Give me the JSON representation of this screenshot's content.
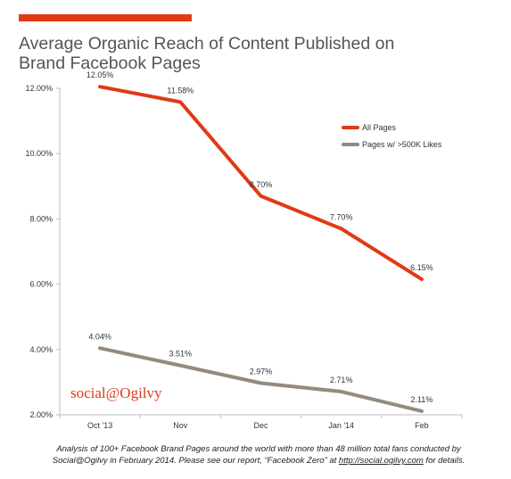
{
  "header": {
    "title_line1": "Average Organic Reach of Content Published on",
    "title_line2": "Brand Facebook Pages",
    "accent_color": "#e03a14"
  },
  "brand": {
    "text": "social@Ogilvy",
    "color": "#e03a14"
  },
  "footnote": {
    "line1": "Analysis of 100+ Facebook Brand Pages around the world with more than 48 million total fans conducted by",
    "line2_prefix": "Social@Ogilvy in February 2014. Please see our report, “Facebook Zero” at ",
    "link": "http://social.ogilvy.com",
    "line2_suffix": " for details."
  },
  "chart_data": {
    "type": "line",
    "categories": [
      "Oct '13",
      "Nov",
      "Dec",
      "Jan '14",
      "Feb"
    ],
    "ylim": [
      2,
      12
    ],
    "yticks": [
      2,
      4,
      6,
      8,
      10,
      12
    ],
    "ytick_labels": [
      "2.00%",
      "4.00%",
      "6.00%",
      "8.00%",
      "10.00%",
      "12.00%"
    ],
    "legend_position": "top-right",
    "grid": false,
    "series": [
      {
        "name": "All Pages",
        "color": "#e03a14",
        "values": [
          12.05,
          11.58,
          8.7,
          7.7,
          6.15
        ],
        "labels": [
          "12.05%",
          "11.58%",
          "8.70%",
          "7.70%",
          "6.15%"
        ]
      },
      {
        "name": "Pages w/ >500K Likes",
        "color": "#948a7e",
        "values": [
          4.04,
          3.51,
          2.97,
          2.71,
          2.11
        ],
        "labels": [
          "4.04%",
          "3.51%",
          "2.97%",
          "2.71%",
          "2.11%"
        ]
      }
    ]
  }
}
